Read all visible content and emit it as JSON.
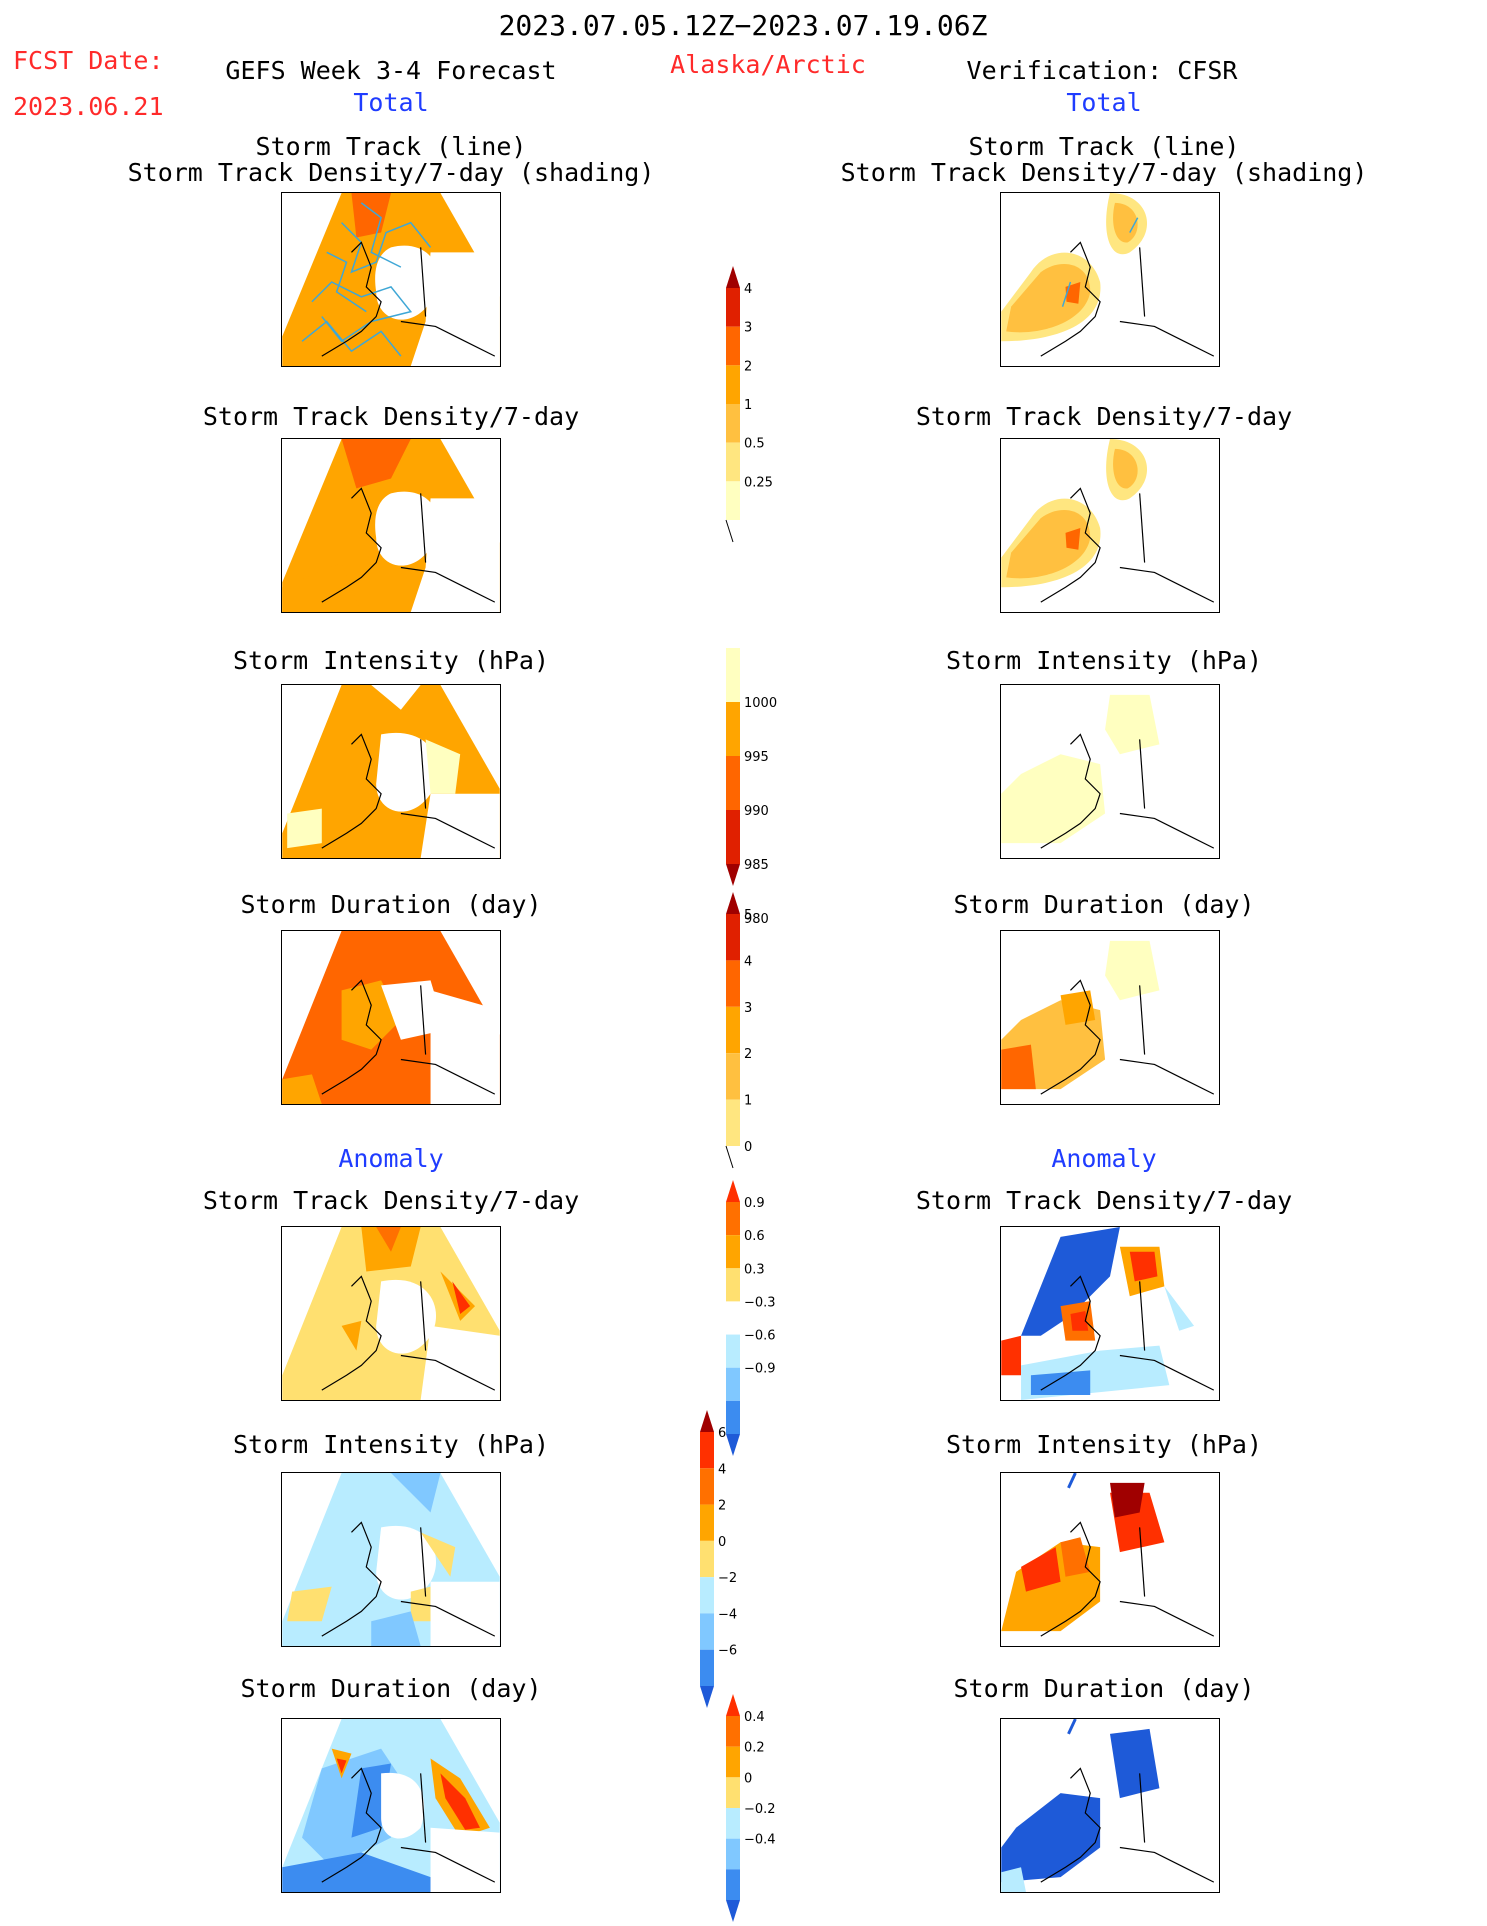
{
  "header": {
    "date_range": "2023.07.05.12Z−2023.07.19.06Z",
    "fcst_label": "FCST Date:",
    "fcst_date": "2023.06.21",
    "forecast_title": "GEFS Week 3-4 Forecast",
    "region": "Alaska/Arctic",
    "verification_title": "Verification: CFSR",
    "left_total": "Total",
    "right_total": "Total"
  },
  "section_labels": {
    "left_anomaly": "Anomaly",
    "right_anomaly": "Anomaly"
  },
  "rows": [
    {
      "title_line1": "Storm Track (line)",
      "title_line2": "Storm Track Density/7-day (shading)"
    },
    {
      "title_line1": "Storm Track Density/7-day",
      "title_line2": ""
    },
    {
      "title_line1": "Storm Intensity (hPa)",
      "title_line2": ""
    },
    {
      "title_line1": "Storm Duration (day)",
      "title_line2": ""
    },
    {
      "title_line1": "Storm Track Density/7-day",
      "title_line2": ""
    },
    {
      "title_line1": "Storm Intensity (hPa)",
      "title_line2": ""
    },
    {
      "title_line1": "Storm Duration (day)",
      "title_line2": ""
    }
  ],
  "colorbars": [
    {
      "id": "density_total",
      "labels": [
        "4",
        "3",
        "2",
        "1",
        "0.5",
        "0.25"
      ],
      "colors": [
        "#a00000",
        "#e02000",
        "#ff6600",
        "#ffa500",
        "#ffc040",
        "#ffe680",
        "#ffffc0"
      ]
    },
    {
      "id": "intensity_total",
      "labels": [
        "1000",
        "995",
        "990",
        "985",
        "980"
      ],
      "colors": [
        "#ffffc0",
        "#ffa500",
        "#ff6600",
        "#e02000",
        "#a00000"
      ]
    },
    {
      "id": "duration_total",
      "labels": [
        "5",
        "4",
        "3",
        "2",
        "1",
        "0"
      ],
      "colors": [
        "#a00000",
        "#e02000",
        "#ff6600",
        "#ffa500",
        "#ffc040",
        "#ffe680"
      ]
    },
    {
      "id": "density_anom",
      "labels": [
        "0.9",
        "0.6",
        "0.3",
        "−0.3",
        "−0.6",
        "−0.9"
      ],
      "colors": [
        "#ff3000",
        "#ff7000",
        "#ffa500",
        "#ffe070",
        "#ffffff",
        "#b8ecff",
        "#80c8ff",
        "#3c8cf0",
        "#1e5ad8"
      ]
    },
    {
      "id": "intensity_anom",
      "labels": [
        "6",
        "4",
        "2",
        "0",
        "−2",
        "−4",
        "−6"
      ],
      "colors": [
        "#a00000",
        "#ff3000",
        "#ff7000",
        "#ffa500",
        "#ffe070",
        "#b8ecff",
        "#80c8ff",
        "#3c8cf0",
        "#1e5ad8"
      ]
    },
    {
      "id": "duration_anom",
      "labels": [
        "0.4",
        "0.2",
        "0",
        "−0.2",
        "−0.4"
      ],
      "colors": [
        "#ff3000",
        "#ff7000",
        "#ffa500",
        "#ffe070",
        "#b8ecff",
        "#80c8ff",
        "#3c8cf0",
        "#1e5ad8"
      ]
    }
  ],
  "colors": {
    "orange": "#ffa500",
    "dark_orange": "#ff6600",
    "light_yellow": "#ffffc0",
    "light_blue": "#b8ecff",
    "blue": "#1e5ad8",
    "track_line": "#3fa7d6"
  }
}
